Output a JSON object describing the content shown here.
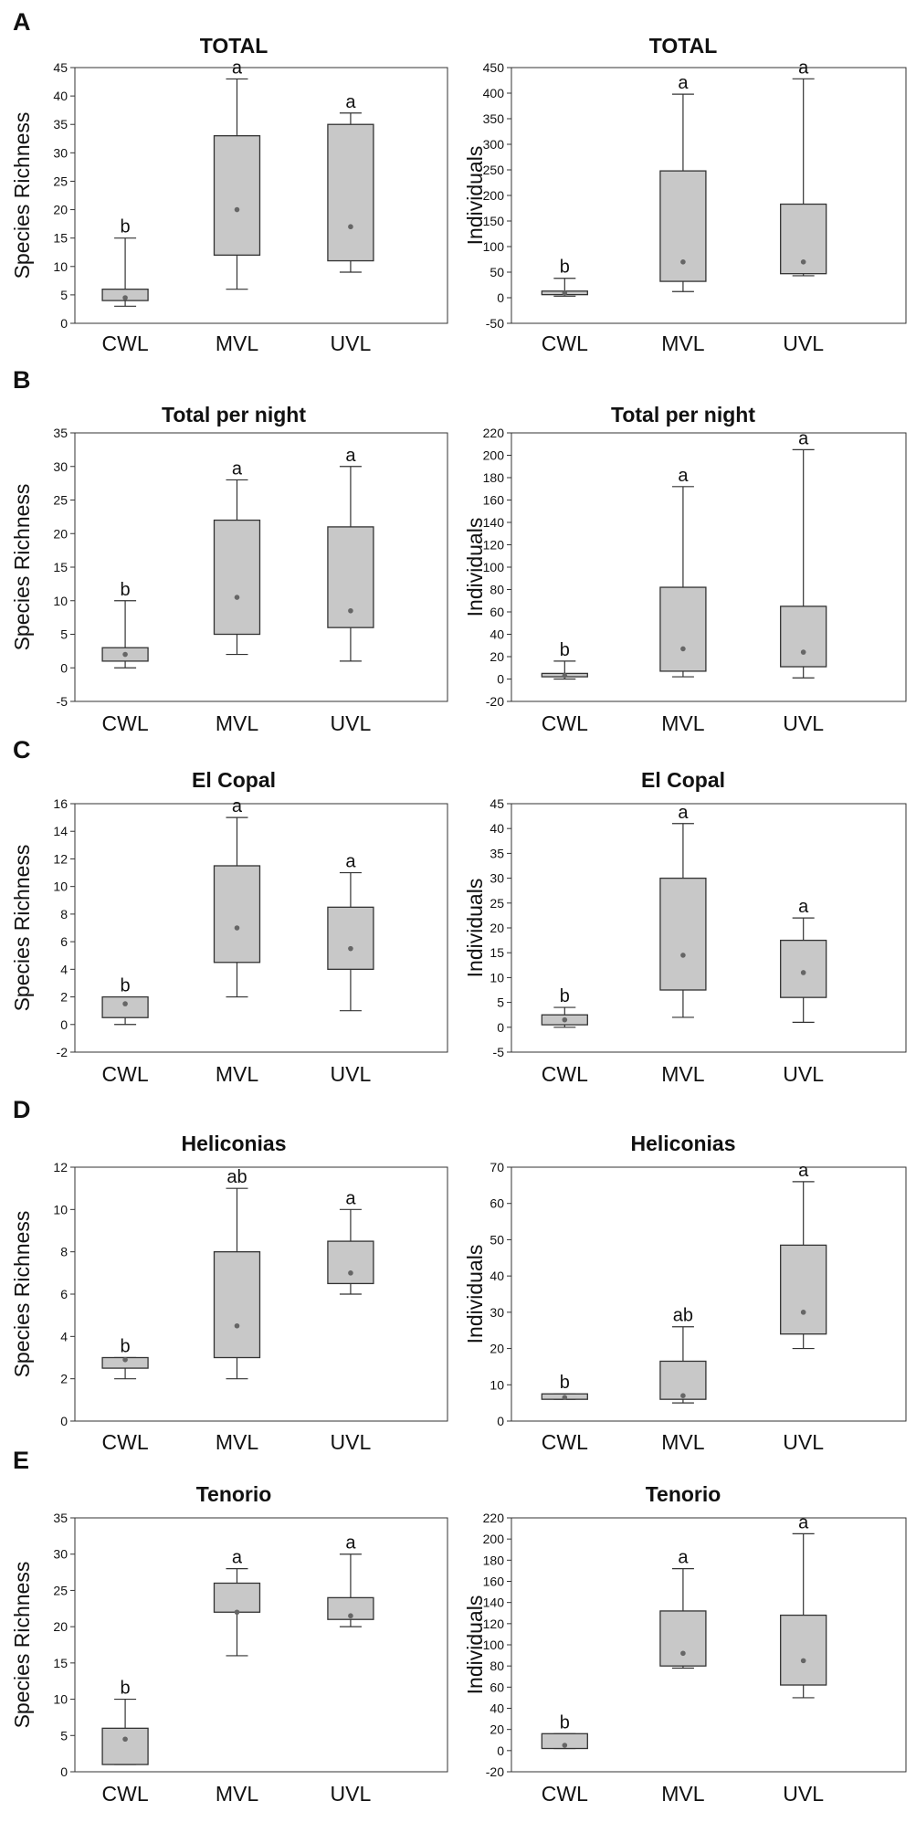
{
  "colors": {
    "box_fill": "#c8c8c8",
    "stroke": "#333333",
    "mean_dot": "#666666"
  },
  "rows": [
    {
      "letter": "A",
      "panels": [
        {
          "title": "TOTAL",
          "ylabel": "Species Richness",
          "ylim": [
            0,
            45
          ],
          "ticks": [
            0,
            5,
            10,
            15,
            20,
            25,
            30,
            35,
            40,
            45
          ],
          "boxes": [
            {
              "category": "CWL",
              "whisker_min": 3,
              "q1": 4,
              "q3": 6,
              "whisker_max": 15,
              "mean": 4.5,
              "letter": "b"
            },
            {
              "category": "MVL",
              "whisker_min": 6,
              "q1": 12,
              "q3": 33,
              "whisker_max": 43,
              "mean": 20,
              "letter": "a"
            },
            {
              "category": "UVL",
              "whisker_min": 9,
              "q1": 11,
              "q3": 35,
              "whisker_max": 37,
              "mean": 17,
              "letter": "a"
            }
          ]
        },
        {
          "title": "TOTAL",
          "ylabel": "Individuals",
          "ylim": [
            -50,
            450
          ],
          "ticks": [
            -50,
            0,
            50,
            100,
            150,
            200,
            250,
            300,
            350,
            400,
            450
          ],
          "boxes": [
            {
              "category": "CWL",
              "whisker_min": 3,
              "q1": 6,
              "q3": 13,
              "whisker_max": 38,
              "mean": 9,
              "letter": "b"
            },
            {
              "category": "MVL",
              "whisker_min": 12,
              "q1": 32,
              "q3": 248,
              "whisker_max": 398,
              "mean": 70,
              "letter": "a"
            },
            {
              "category": "UVL",
              "whisker_min": 43,
              "q1": 47,
              "q3": 183,
              "whisker_max": 428,
              "mean": 70,
              "letter": "a"
            }
          ]
        }
      ]
    },
    {
      "letter": "B",
      "panels": [
        {
          "title": "Total per night",
          "ylabel": "Species Richness",
          "ylim": [
            -5,
            35
          ],
          "ticks": [
            -5,
            0,
            5,
            10,
            15,
            20,
            25,
            30,
            35
          ],
          "boxes": [
            {
              "category": "CWL",
              "whisker_min": 0,
              "q1": 1,
              "q3": 3,
              "whisker_max": 10,
              "mean": 2,
              "letter": "b"
            },
            {
              "category": "MVL",
              "whisker_min": 2,
              "q1": 5,
              "q3": 22,
              "whisker_max": 28,
              "mean": 10.5,
              "letter": "a"
            },
            {
              "category": "UVL",
              "whisker_min": 1,
              "q1": 6,
              "q3": 21,
              "whisker_max": 30,
              "mean": 8.5,
              "letter": "a"
            }
          ]
        },
        {
          "title": "Total per night",
          "ylabel": "Individuals",
          "ylim": [
            -20,
            220
          ],
          "ticks": [
            -20,
            0,
            20,
            40,
            60,
            80,
            100,
            120,
            140,
            160,
            180,
            200,
            220
          ],
          "boxes": [
            {
              "category": "CWL",
              "whisker_min": 0,
              "q1": 2,
              "q3": 5,
              "whisker_max": 16,
              "mean": 3,
              "letter": "b"
            },
            {
              "category": "MVL",
              "whisker_min": 2,
              "q1": 7,
              "q3": 82,
              "whisker_max": 172,
              "mean": 27,
              "letter": "a"
            },
            {
              "category": "UVL",
              "whisker_min": 1,
              "q1": 11,
              "q3": 65,
              "whisker_max": 205,
              "mean": 24,
              "letter": "a"
            }
          ]
        }
      ]
    },
    {
      "letter": "C",
      "panels": [
        {
          "title": "El Copal",
          "ylabel": "Species Richness",
          "ylim": [
            -2,
            16
          ],
          "ticks": [
            -2,
            0,
            2,
            4,
            6,
            8,
            10,
            12,
            14,
            16
          ],
          "boxes": [
            {
              "category": "CWL",
              "whisker_min": 0,
              "q1": 0.5,
              "q3": 2,
              "whisker_max": 2,
              "mean": 1.5,
              "letter": "b"
            },
            {
              "category": "MVL",
              "whisker_min": 2,
              "q1": 4.5,
              "q3": 11.5,
              "whisker_max": 15,
              "mean": 7,
              "letter": "a"
            },
            {
              "category": "UVL",
              "whisker_min": 1,
              "q1": 4,
              "q3": 8.5,
              "whisker_max": 11,
              "mean": 5.5,
              "letter": "a"
            }
          ]
        },
        {
          "title": "El Copal",
          "ylabel": "Individuals",
          "ylim": [
            -5,
            45
          ],
          "ticks": [
            -5,
            0,
            5,
            10,
            15,
            20,
            25,
            30,
            35,
            40,
            45
          ],
          "boxes": [
            {
              "category": "CWL",
              "whisker_min": 0,
              "q1": 0.5,
              "q3": 2.5,
              "whisker_max": 4,
              "mean": 1.5,
              "letter": "b"
            },
            {
              "category": "MVL",
              "whisker_min": 2,
              "q1": 7.5,
              "q3": 30,
              "whisker_max": 41,
              "mean": 14.5,
              "letter": "a"
            },
            {
              "category": "UVL",
              "whisker_min": 1,
              "q1": 6,
              "q3": 17.5,
              "whisker_max": 22,
              "mean": 11,
              "letter": "a"
            }
          ]
        }
      ]
    },
    {
      "letter": "D",
      "panels": [
        {
          "title": "Heliconias",
          "ylabel": "Species Richness",
          "ylim": [
            0,
            12
          ],
          "ticks": [
            0,
            2,
            4,
            6,
            8,
            10,
            12
          ],
          "boxes": [
            {
              "category": "CWL",
              "whisker_min": 2,
              "q1": 2.5,
              "q3": 3,
              "whisker_max": 3,
              "mean": 2.9,
              "letter": "b"
            },
            {
              "category": "MVL",
              "whisker_min": 2,
              "q1": 3,
              "q3": 8,
              "whisker_max": 11,
              "mean": 4.5,
              "letter": "ab"
            },
            {
              "category": "UVL",
              "whisker_min": 6,
              "q1": 6.5,
              "q3": 8.5,
              "whisker_max": 10,
              "mean": 7,
              "letter": "a"
            }
          ]
        },
        {
          "title": "Heliconias",
          "ylabel": "Individuals",
          "ylim": [
            0,
            70
          ],
          "ticks": [
            0,
            10,
            20,
            30,
            40,
            50,
            60,
            70
          ],
          "boxes": [
            {
              "category": "CWL",
              "whisker_min": 6,
              "q1": 6,
              "q3": 7.5,
              "whisker_max": 7.5,
              "mean": 6.5,
              "letter": "b"
            },
            {
              "category": "MVL",
              "whisker_min": 5,
              "q1": 6,
              "q3": 16.5,
              "whisker_max": 26,
              "mean": 7,
              "letter": "ab"
            },
            {
              "category": "UVL",
              "whisker_min": 20,
              "q1": 24,
              "q3": 48.5,
              "whisker_max": 66,
              "mean": 30,
              "letter": "a"
            }
          ]
        }
      ]
    },
    {
      "letter": "E",
      "panels": [
        {
          "title": "Tenorio",
          "ylabel": "Species Richness",
          "ylim": [
            0,
            35
          ],
          "ticks": [
            0,
            5,
            10,
            15,
            20,
            25,
            30,
            35
          ],
          "boxes": [
            {
              "category": "CWL",
              "whisker_min": 1,
              "q1": 1,
              "q3": 6,
              "whisker_max": 10,
              "mean": 4.5,
              "letter": "b"
            },
            {
              "category": "MVL",
              "whisker_min": 16,
              "q1": 22,
              "q3": 26,
              "whisker_max": 28,
              "mean": 22,
              "letter": "a"
            },
            {
              "category": "UVL",
              "whisker_min": 20,
              "q1": 21,
              "q3": 24,
              "whisker_max": 30,
              "mean": 21.5,
              "letter": "a"
            }
          ]
        },
        {
          "title": "Tenorio",
          "ylabel": "Individuals",
          "ylim": [
            -20,
            220
          ],
          "ticks": [
            -20,
            0,
            20,
            40,
            60,
            80,
            100,
            120,
            140,
            160,
            180,
            200,
            220
          ],
          "boxes": [
            {
              "category": "CWL",
              "whisker_min": 2,
              "q1": 2,
              "q3": 16,
              "whisker_max": 16,
              "mean": 5,
              "letter": "b"
            },
            {
              "category": "MVL",
              "whisker_min": 78,
              "q1": 80,
              "q3": 132,
              "whisker_max": 172,
              "mean": 92,
              "letter": "a"
            },
            {
              "category": "UVL",
              "whisker_min": 50,
              "q1": 62,
              "q3": 128,
              "whisker_max": 205,
              "mean": 85,
              "letter": "a"
            }
          ]
        }
      ]
    }
  ],
  "chart_data": {
    "type": "box",
    "categories": [
      "CWL",
      "MVL",
      "UVL"
    ],
    "panels": [
      {
        "row": "A",
        "title": "TOTAL",
        "ylabel": "Species Richness",
        "ylim": [
          0,
          45
        ]
      },
      {
        "row": "A",
        "title": "TOTAL",
        "ylabel": "Individuals",
        "ylim": [
          -50,
          450
        ]
      },
      {
        "row": "B",
        "title": "Total per night",
        "ylabel": "Species Richness",
        "ylim": [
          -5,
          35
        ]
      },
      {
        "row": "B",
        "title": "Total per night",
        "ylabel": "Individuals",
        "ylim": [
          -20,
          220
        ]
      },
      {
        "row": "C",
        "title": "El Copal",
        "ylabel": "Species Richness",
        "ylim": [
          -2,
          16
        ]
      },
      {
        "row": "C",
        "title": "El Copal",
        "ylabel": "Individuals",
        "ylim": [
          -5,
          45
        ]
      },
      {
        "row": "D",
        "title": "Heliconias",
        "ylabel": "Species Richness",
        "ylim": [
          0,
          12
        ]
      },
      {
        "row": "D",
        "title": "Heliconias",
        "ylabel": "Individuals",
        "ylim": [
          0,
          70
        ]
      },
      {
        "row": "E",
        "title": "Tenorio",
        "ylabel": "Species Richness",
        "ylim": [
          0,
          35
        ]
      },
      {
        "row": "E",
        "title": "Tenorio",
        "ylabel": "Individuals",
        "ylim": [
          -20,
          220
        ]
      }
    ]
  }
}
